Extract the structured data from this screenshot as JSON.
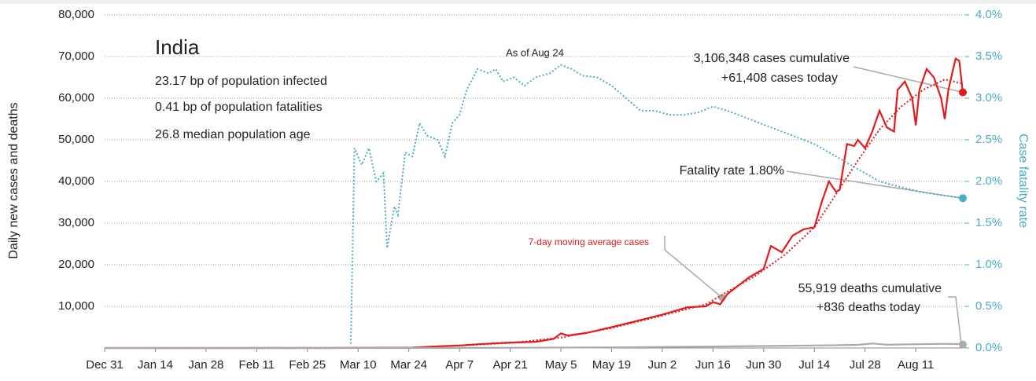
{
  "chart_data": {
    "type": "line",
    "annotations": [
      "India",
      "23.17 bp of population infected",
      "0.41 bp of population fatalities",
      "26.8 median population age",
      "As of Aug 24",
      "3,106,348 cases cumulative",
      "+61,408 cases today",
      "Fatality rate 1.80%",
      "55,919 deaths cumulative",
      "+836 deaths today"
    ],
    "ylabel": "Daily new cases and deaths",
    "y2label": "Case fatality rate",
    "xlim": [
      0,
      237
    ],
    "xticks": [
      {
        "value": 0,
        "label": "Dec 31"
      },
      {
        "value": 14,
        "label": "Jan 14"
      },
      {
        "value": 28,
        "label": "Jan 28"
      },
      {
        "value": 42,
        "label": "Feb 11"
      },
      {
        "value": 56,
        "label": "Feb 25"
      },
      {
        "value": 70,
        "label": "Mar 10"
      },
      {
        "value": 84,
        "label": "Mar 24"
      },
      {
        "value": 98,
        "label": "Apr 7"
      },
      {
        "value": 112,
        "label": "Apr 21"
      },
      {
        "value": 126,
        "label": "May 5"
      },
      {
        "value": 140,
        "label": "May 19"
      },
      {
        "value": 154,
        "label": "Jun 2"
      },
      {
        "value": 168,
        "label": "Jun 16"
      },
      {
        "value": 182,
        "label": "Jun 30"
      },
      {
        "value": 196,
        "label": "Jul 14"
      },
      {
        "value": 210,
        "label": "Jul 28"
      },
      {
        "value": 224,
        "label": "Aug 11"
      }
    ],
    "ylim": [
      0,
      80000
    ],
    "yticks": [
      {
        "value": 10000,
        "label": "10,000"
      },
      {
        "value": 20000,
        "label": "20,000"
      },
      {
        "value": 30000,
        "label": "30,000"
      },
      {
        "value": 40000,
        "label": "40,000"
      },
      {
        "value": 50000,
        "label": "50,000"
      },
      {
        "value": 60000,
        "label": "60,000"
      },
      {
        "value": 70000,
        "label": "70,000"
      },
      {
        "value": 80000,
        "label": "80,000"
      }
    ],
    "y2lim": [
      0,
      4
    ],
    "y2ticks": [
      {
        "value": 0,
        "label": "0.0%"
      },
      {
        "value": 0.5,
        "label": "0.5%"
      },
      {
        "value": 1,
        "label": "1.0%"
      },
      {
        "value": 1.5,
        "label": "1.5%"
      },
      {
        "value": 2,
        "label": "2.0%"
      },
      {
        "value": 2.5,
        "label": "2.5%"
      },
      {
        "value": 3,
        "label": "3.0%"
      },
      {
        "value": 3.5,
        "label": "3.5%"
      },
      {
        "value": 4,
        "label": "4.0%"
      }
    ],
    "grid": true,
    "series": [
      {
        "color": "#e41a1c",
        "style": "solid",
        "x": [
          0,
          60,
          85,
          92,
          98,
          105,
          112,
          119,
          124,
          126,
          128,
          133,
          140,
          147,
          154,
          161,
          166,
          168,
          170,
          172,
          175,
          178,
          182,
          184,
          187,
          190,
          193,
          196,
          198,
          200,
          202,
          203,
          205,
          207,
          208,
          210,
          212,
          214,
          216,
          218,
          219,
          221,
          223,
          224,
          225,
          227,
          229,
          231,
          232,
          233,
          235,
          236,
          237
        ],
        "values": [
          0,
          0,
          100,
          400,
          600,
          1000,
          1300,
          1500,
          2200,
          3500,
          3000,
          3600,
          5000,
          6500,
          8000,
          9800,
          10000,
          11000,
          10500,
          13000,
          15000,
          17000,
          19000,
          24500,
          23000,
          27000,
          28500,
          29000,
          35000,
          40000,
          37500,
          38000,
          49000,
          48500,
          50000,
          48000,
          52000,
          57000,
          53000,
          52000,
          62000,
          64000,
          60000,
          53500,
          62000,
          67000,
          65000,
          60000,
          55000,
          62000,
          69500,
          69000,
          61408
        ]
      },
      {
        "name": "7-day moving average cases",
        "color": "#e41a1c",
        "style": "dotted",
        "x": [
          0,
          85,
          98,
          112,
          126,
          140,
          154,
          166,
          172,
          180,
          188,
          196,
          202,
          208,
          214,
          220,
          226,
          232,
          237
        ],
        "values": [
          0,
          80,
          600,
          1200,
          2500,
          4800,
          7800,
          10500,
          13500,
          17500,
          22500,
          29000,
          37000,
          45000,
          52500,
          58000,
          62000,
          64500,
          63500
        ]
      },
      {
        "color": "#aaaaaa",
        "style": "solid",
        "x": [
          0,
          85,
          112,
          140,
          168,
          196,
          208,
          212,
          216,
          224,
          232,
          236,
          237
        ],
        "values": [
          0,
          5,
          50,
          150,
          350,
          600,
          750,
          1100,
          800,
          900,
          1000,
          950,
          836
        ]
      },
      {
        "color": "#4bacc6",
        "style": "dotted",
        "axis": "y2",
        "x": [
          68,
          69,
          71,
          73,
          75,
          77,
          78,
          80,
          81,
          83,
          85,
          87,
          89,
          92,
          94,
          96,
          98,
          100,
          103,
          106,
          108,
          110,
          113,
          116,
          119,
          123,
          126,
          129,
          132,
          136,
          140,
          144,
          148,
          152,
          156,
          160,
          164,
          168,
          172,
          178,
          184,
          190,
          196,
          202,
          208,
          214,
          220,
          226,
          232,
          237
        ],
        "values": [
          0.05,
          2.4,
          2.2,
          2.4,
          2.0,
          2.1,
          1.2,
          1.7,
          1.6,
          2.35,
          2.3,
          2.7,
          2.55,
          2.5,
          2.3,
          2.7,
          2.8,
          3.1,
          3.35,
          3.3,
          3.35,
          3.2,
          3.25,
          3.15,
          3.25,
          3.3,
          3.4,
          3.35,
          3.27,
          3.25,
          3.15,
          3.0,
          2.85,
          2.85,
          2.8,
          2.8,
          2.83,
          2.9,
          2.85,
          2.75,
          2.65,
          2.55,
          2.45,
          2.3,
          2.15,
          2.0,
          1.93,
          1.87,
          1.83,
          1.8
        ]
      }
    ]
  }
}
